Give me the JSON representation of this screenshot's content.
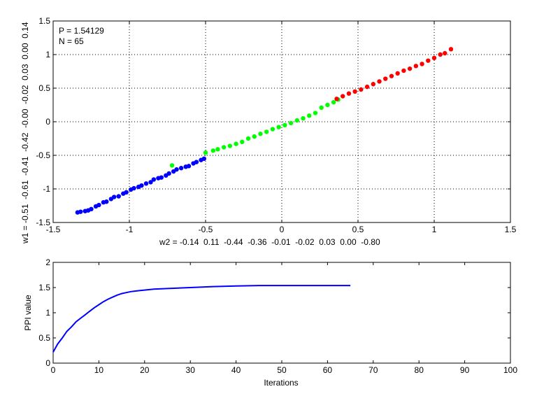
{
  "chart_data": [
    {
      "type": "scatter",
      "xlabel": "w2 = -0.14  0.11  -0.44  -0.36  -0.01  -0.02  0.03  0.00  -0.80",
      "ylabel": "w1 = -0.51  -0.61  -0.41  -0.42  -0.00  -0.02  0.03  0.00  0.14",
      "xlim": [
        -1.5,
        1.5
      ],
      "ylim": [
        -1.5,
        1.5
      ],
      "xticks": [
        "-1.5",
        "-1",
        "-0.5",
        "0",
        "0.5",
        "1",
        "1.5"
      ],
      "yticks": [
        "-1.5",
        "-1",
        "-0.5",
        "0",
        "0.5",
        "1",
        "1.5"
      ],
      "grid": true,
      "annotations": [
        "P = 1.54129",
        "N = 65"
      ],
      "series": [
        {
          "color": "#0000ff",
          "points": [
            [
              -1.34,
              -1.35
            ],
            [
              -1.32,
              -1.34
            ],
            [
              -1.29,
              -1.33
            ],
            [
              -1.27,
              -1.32
            ],
            [
              -1.25,
              -1.3
            ],
            [
              -1.22,
              -1.26
            ],
            [
              -1.2,
              -1.24
            ],
            [
              -1.17,
              -1.2
            ],
            [
              -1.15,
              -1.19
            ],
            [
              -1.12,
              -1.15
            ],
            [
              -1.1,
              -1.12
            ],
            [
              -1.07,
              -1.11
            ],
            [
              -1.04,
              -1.07
            ],
            [
              -1.02,
              -1.05
            ],
            [
              -0.99,
              -1.01
            ],
            [
              -0.97,
              -0.99
            ],
            [
              -0.94,
              -0.97
            ],
            [
              -0.92,
              -0.95
            ],
            [
              -0.89,
              -0.92
            ],
            [
              -0.86,
              -0.9
            ],
            [
              -0.84,
              -0.86
            ],
            [
              -0.81,
              -0.84
            ],
            [
              -0.79,
              -0.83
            ],
            [
              -0.76,
              -0.8
            ],
            [
              -0.74,
              -0.77
            ],
            [
              -0.71,
              -0.74
            ],
            [
              -0.69,
              -0.71
            ],
            [
              -0.66,
              -0.69
            ],
            [
              -0.63,
              -0.67
            ],
            [
              -0.61,
              -0.66
            ],
            [
              -0.58,
              -0.62
            ],
            [
              -0.56,
              -0.6
            ],
            [
              -0.53,
              -0.57
            ],
            [
              -0.51,
              -0.55
            ]
          ]
        },
        {
          "color": "#00ff00",
          "points": [
            [
              -0.72,
              -0.65
            ],
            [
              -0.5,
              -0.46
            ],
            [
              -0.45,
              -0.43
            ],
            [
              -0.42,
              -0.41
            ],
            [
              -0.38,
              -0.38
            ],
            [
              -0.34,
              -0.36
            ],
            [
              -0.3,
              -0.33
            ],
            [
              -0.26,
              -0.3
            ],
            [
              -0.22,
              -0.25
            ],
            [
              -0.18,
              -0.22
            ],
            [
              -0.14,
              -0.18
            ],
            [
              -0.1,
              -0.15
            ],
            [
              -0.06,
              -0.11
            ],
            [
              -0.02,
              -0.08
            ],
            [
              0.02,
              -0.05
            ],
            [
              0.06,
              -0.02
            ],
            [
              0.1,
              0.02
            ],
            [
              0.14,
              0.05
            ],
            [
              0.18,
              0.09
            ],
            [
              0.22,
              0.13
            ],
            [
              0.26,
              0.21
            ],
            [
              0.3,
              0.25
            ],
            [
              0.34,
              0.29
            ],
            [
              0.37,
              0.33
            ]
          ]
        },
        {
          "color": "#ff0000",
          "points": [
            [
              0.36,
              0.34
            ],
            [
              0.4,
              0.38
            ],
            [
              0.44,
              0.42
            ],
            [
              0.48,
              0.45
            ],
            [
              0.52,
              0.48
            ],
            [
              0.56,
              0.52
            ],
            [
              0.6,
              0.56
            ],
            [
              0.64,
              0.6
            ],
            [
              0.68,
              0.64
            ],
            [
              0.72,
              0.68
            ],
            [
              0.76,
              0.72
            ],
            [
              0.8,
              0.76
            ],
            [
              0.84,
              0.79
            ],
            [
              0.88,
              0.83
            ],
            [
              0.92,
              0.86
            ],
            [
              0.96,
              0.91
            ],
            [
              1.0,
              0.95
            ],
            [
              1.04,
              1.0
            ],
            [
              1.07,
              1.02
            ],
            [
              1.11,
              1.08
            ]
          ]
        }
      ]
    },
    {
      "type": "line",
      "xlabel": "Iterations",
      "ylabel": "PPI value",
      "xlim": [
        0,
        100
      ],
      "ylim": [
        0,
        2
      ],
      "xticks": [
        "0",
        "10",
        "20",
        "30",
        "40",
        "50",
        "60",
        "70",
        "80",
        "90",
        "100"
      ],
      "yticks": [
        "0",
        "0.5",
        "1",
        "1.5",
        "2"
      ],
      "grid": false,
      "series": [
        {
          "color": "#0000ff",
          "x": [
            0,
            1,
            2,
            3,
            4,
            5,
            6,
            7,
            8,
            9,
            10,
            11,
            12,
            13,
            14,
            15,
            16,
            17,
            18,
            19,
            20,
            22,
            25,
            30,
            35,
            40,
            45,
            50,
            55,
            60,
            65
          ],
          "values": [
            0.22,
            0.38,
            0.5,
            0.63,
            0.72,
            0.82,
            0.89,
            0.96,
            1.03,
            1.1,
            1.16,
            1.22,
            1.27,
            1.31,
            1.35,
            1.38,
            1.4,
            1.42,
            1.43,
            1.44,
            1.45,
            1.47,
            1.48,
            1.5,
            1.52,
            1.53,
            1.54,
            1.54,
            1.54,
            1.54,
            1.54
          ]
        }
      ]
    }
  ]
}
